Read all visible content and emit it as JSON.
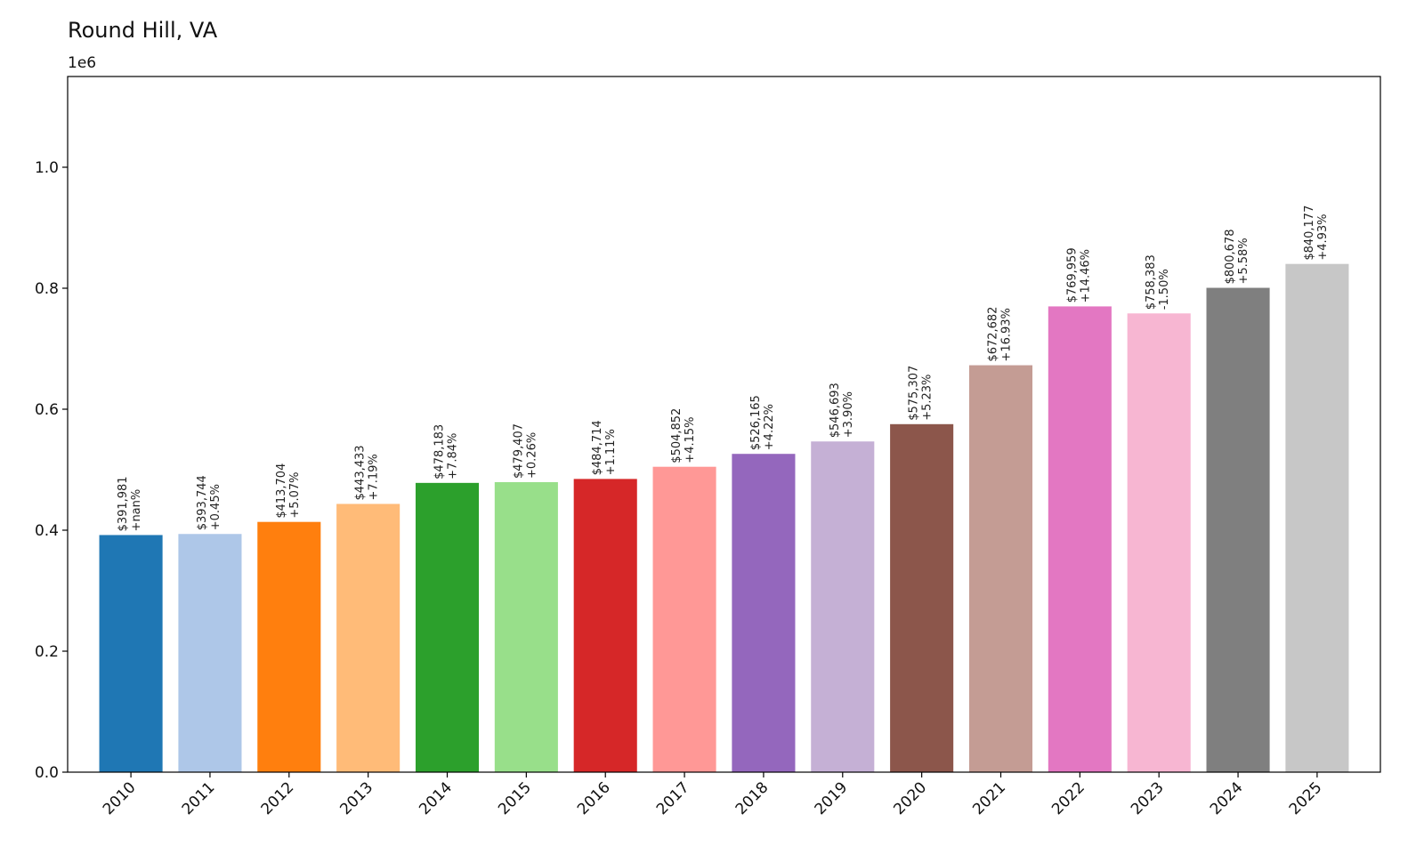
{
  "chart_data": {
    "type": "bar",
    "title": "Round Hill, VA",
    "offset_text": "1e6",
    "xlabel": "",
    "ylabel": "",
    "ylim": [
      0,
      1150000
    ],
    "yticks": [
      0,
      200000,
      400000,
      600000,
      800000,
      1000000
    ],
    "ytick_labels": [
      "0.0",
      "0.2",
      "0.4",
      "0.6",
      "0.8",
      "1.0"
    ],
    "grid": false,
    "categories": [
      "2010",
      "2011",
      "2012",
      "2013",
      "2014",
      "2015",
      "2016",
      "2017",
      "2018",
      "2019",
      "2020",
      "2021",
      "2022",
      "2023",
      "2024",
      "2025"
    ],
    "values": [
      391981,
      393744,
      413704,
      443433,
      478183,
      479407,
      484714,
      504852,
      526165,
      546693,
      575307,
      672682,
      769959,
      758383,
      800678,
      840177
    ],
    "value_labels": [
      "$391,981",
      "$393,744",
      "$413,704",
      "$443,433",
      "$478,183",
      "$479,407",
      "$484,714",
      "$504,852",
      "$526,165",
      "$546,693",
      "$575,307",
      "$672,682",
      "$769,959",
      "$758,383",
      "$800,678",
      "$840,177"
    ],
    "change_labels": [
      "+nan%",
      "+0.45%",
      "+5.07%",
      "+7.19%",
      "+7.84%",
      "+0.26%",
      "+1.11%",
      "+4.15%",
      "+4.22%",
      "+3.90%",
      "+5.23%",
      "+16.93%",
      "+14.46%",
      "-1.50%",
      "+5.58%",
      "+4.93%"
    ],
    "colors": [
      "#1f77b4",
      "#aec7e8",
      "#ff7f0e",
      "#ffbb78",
      "#2ca02c",
      "#98df8a",
      "#d62728",
      "#ff9896",
      "#9467bd",
      "#c5b0d5",
      "#8c564b",
      "#c49c94",
      "#e377c2",
      "#f7b6d2",
      "#7f7f7f",
      "#c7c7c7"
    ]
  }
}
